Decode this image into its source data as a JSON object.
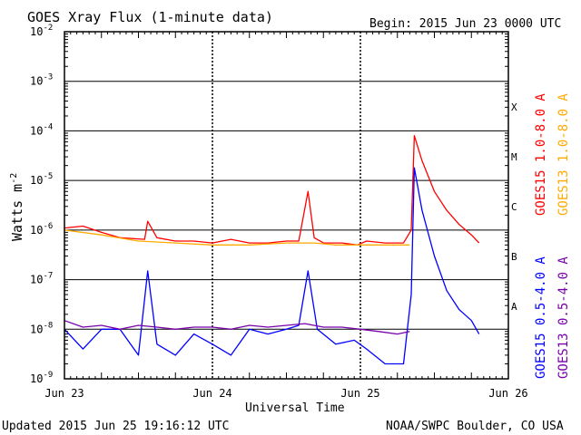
{
  "chart_data": {
    "type": "line",
    "title": "GOES Xray Flux (1-minute data)",
    "begin_label": "Begin:  2015 Jun 23 0000 UTC",
    "xlabel": "Universal Time",
    "ylabel": "Watts m",
    "ylabel_superscript": "-2",
    "y_scale": "log",
    "ylim": [
      1e-09,
      0.01
    ],
    "xlim": [
      "2015-06-23T00:00",
      "2015-06-26T00:00"
    ],
    "x_ticks": [
      "Jun 23",
      "Jun 24",
      "Jun 25",
      "Jun 26"
    ],
    "y_ticks": [
      {
        "base": "10",
        "exp": "-9"
      },
      {
        "base": "10",
        "exp": "-8"
      },
      {
        "base": "10",
        "exp": "-7"
      },
      {
        "base": "10",
        "exp": "-6"
      },
      {
        "base": "10",
        "exp": "-5"
      },
      {
        "base": "10",
        "exp": "-4"
      },
      {
        "base": "10",
        "exp": "-3"
      },
      {
        "base": "10",
        "exp": "-2"
      }
    ],
    "flare_classes": [
      "A",
      "B",
      "C",
      "M",
      "X"
    ],
    "grid": true,
    "series": [
      {
        "name": "GOES15 1.0-8.0 A",
        "color": "#ff0000",
        "x": [
          "2015-06-23T00:00",
          "2015-06-23T03:00",
          "2015-06-23T06:00",
          "2015-06-23T09:00",
          "2015-06-23T13:00",
          "2015-06-23T13:30",
          "2015-06-23T15:00",
          "2015-06-23T18:00",
          "2015-06-23T21:00",
          "2015-06-24T00:00",
          "2015-06-24T03:00",
          "2015-06-24T06:00",
          "2015-06-24T09:00",
          "2015-06-24T12:00",
          "2015-06-24T14:00",
          "2015-06-24T15:30",
          "2015-06-24T16:30",
          "2015-06-24T18:00",
          "2015-06-24T21:00",
          "2015-06-24T23:30",
          "2015-06-25T01:00",
          "2015-06-25T04:00",
          "2015-06-25T07:00",
          "2015-06-25T08:15",
          "2015-06-25T08:45",
          "2015-06-25T10:00",
          "2015-06-25T12:00",
          "2015-06-25T14:00",
          "2015-06-25T16:00",
          "2015-06-25T18:00",
          "2015-06-25T19:15"
        ],
        "values": [
          1.1e-06,
          1.2e-06,
          9e-07,
          7e-07,
          6.5e-07,
          1.5e-06,
          7e-07,
          6e-07,
          6e-07,
          5.5e-07,
          6.5e-07,
          5.5e-07,
          5.5e-07,
          6e-07,
          6e-07,
          6e-06,
          7e-07,
          5.5e-07,
          5.5e-07,
          5e-07,
          6e-07,
          5.5e-07,
          5.5e-07,
          1e-06,
          8e-05,
          2.5e-05,
          6e-06,
          2.5e-06,
          1.3e-06,
          8e-07,
          5.5e-07
        ]
      },
      {
        "name": "GOES13 1.0-8.0 A",
        "color": "#ffaa00",
        "x": [
          "2015-06-23T00:00",
          "2015-06-23T06:00",
          "2015-06-23T12:00",
          "2015-06-23T18:00",
          "2015-06-24T00:00",
          "2015-06-24T06:00",
          "2015-06-24T12:00",
          "2015-06-24T16:30",
          "2015-06-24T20:00",
          "2015-06-25T00:00",
          "2015-06-25T04:00",
          "2015-06-25T08:00"
        ],
        "values": [
          1e-06,
          8e-07,
          6e-07,
          5.5e-07,
          5e-07,
          5e-07,
          5.5e-07,
          5.5e-07,
          5e-07,
          5e-07,
          5e-07,
          5e-07
        ]
      },
      {
        "name": "GOES15 0.5-4.0 A",
        "color": "#0000ff",
        "x": [
          "2015-06-23T00:00",
          "2015-06-23T03:00",
          "2015-06-23T06:00",
          "2015-06-23T09:00",
          "2015-06-23T12:00",
          "2015-06-23T13:30",
          "2015-06-23T15:00",
          "2015-06-23T18:00",
          "2015-06-23T21:00",
          "2015-06-24T00:00",
          "2015-06-24T03:00",
          "2015-06-24T06:00",
          "2015-06-24T09:00",
          "2015-06-24T12:00",
          "2015-06-24T14:00",
          "2015-06-24T15:30",
          "2015-06-24T17:00",
          "2015-06-24T20:00",
          "2015-06-24T23:00",
          "2015-06-25T01:00",
          "2015-06-25T04:00",
          "2015-06-25T07:00",
          "2015-06-25T08:15",
          "2015-06-25T08:45",
          "2015-06-25T10:00",
          "2015-06-25T12:00",
          "2015-06-25T14:00",
          "2015-06-25T16:00",
          "2015-06-25T18:00",
          "2015-06-25T19:15"
        ],
        "values": [
          1e-08,
          4e-09,
          1e-08,
          1e-08,
          3e-09,
          1.5e-07,
          5e-09,
          3e-09,
          8e-09,
          5e-09,
          3e-09,
          1e-08,
          8e-09,
          1e-08,
          1.2e-08,
          1.5e-07,
          1e-08,
          5e-09,
          6e-09,
          4e-09,
          2e-09,
          2e-09,
          5e-08,
          1.8e-05,
          2.5e-06,
          3e-07,
          6e-08,
          2.5e-08,
          1.5e-08,
          8e-09
        ]
      },
      {
        "name": "GOES13 0.5-4.0 A",
        "color": "#7700aa",
        "x": [
          "2015-06-23T00:00",
          "2015-06-23T03:00",
          "2015-06-23T06:00",
          "2015-06-23T09:00",
          "2015-06-23T12:00",
          "2015-06-23T15:00",
          "2015-06-23T18:00",
          "2015-06-23T21:00",
          "2015-06-24T00:00",
          "2015-06-24T03:00",
          "2015-06-24T06:00",
          "2015-06-24T09:00",
          "2015-06-24T12:00",
          "2015-06-24T15:00",
          "2015-06-24T18:00",
          "2015-06-24T21:00",
          "2015-06-25T00:00",
          "2015-06-25T03:00",
          "2015-06-25T06:00",
          "2015-06-25T08:00"
        ],
        "values": [
          1.5e-08,
          1.1e-08,
          1.2e-08,
          1e-08,
          1.2e-08,
          1.1e-08,
          1e-08,
          1.1e-08,
          1.1e-08,
          1e-08,
          1.2e-08,
          1.1e-08,
          1.2e-08,
          1.3e-08,
          1.1e-08,
          1.1e-08,
          1e-08,
          9e-09,
          8e-09,
          9e-09
        ]
      }
    ]
  },
  "footer": {
    "updated": "Updated 2015 Jun 25 19:16:12 UTC",
    "credit": "NOAA/SWPC Boulder, CO USA"
  }
}
